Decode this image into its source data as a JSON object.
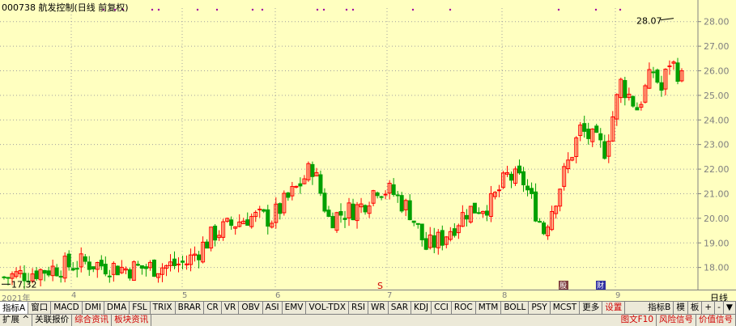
{
  "title": "000738 航发控制(日线 前复权)",
  "period_label": "日线",
  "chart_data": {
    "type": "candlestick",
    "title": "000738 航发控制(日线 前复权)",
    "y_ticks": [
      "28.00",
      "27.00",
      "26.00",
      "25.00",
      "24.00",
      "23.00",
      "22.00",
      "21.00",
      "20.00",
      "19.00",
      "18.00"
    ],
    "ylim": [
      17.1,
      28.55
    ],
    "x_labels": [
      "2021年",
      "4",
      "5",
      "6",
      "7",
      "8",
      "9"
    ],
    "annotations": {
      "low_label": "17.32",
      "high_label": "28.07"
    },
    "markers": [
      "S",
      "股",
      "财"
    ]
  },
  "tabs_row1": [
    "指标A",
    "窗口",
    "MACD",
    "DMI",
    "DMA",
    "FSL",
    "TRIX",
    "BRAR",
    "CR",
    "VR",
    "OBV",
    "ASI",
    "EMV",
    "VOL-TDX",
    "RSI",
    "WR",
    "SAR",
    "KDJ",
    "CCI",
    "ROC",
    "MTM",
    "BOLL",
    "PSY",
    "MCST",
    "更多",
    "设置"
  ],
  "tabs_row1_right": [
    "指标B",
    "模",
    "板",
    "+",
    "-",
    "▼"
  ],
  "tabs_row2": [
    "扩展 ^",
    "关联报价",
    "综合资讯",
    "板块资讯"
  ],
  "tabs_row2_right": [
    "图文F10",
    "风险信号",
    "价值信号"
  ],
  "colors": {
    "up": "#ff0000",
    "down": "#00a000",
    "bg": "#ffffc0",
    "grid": "#a0a0a0"
  }
}
